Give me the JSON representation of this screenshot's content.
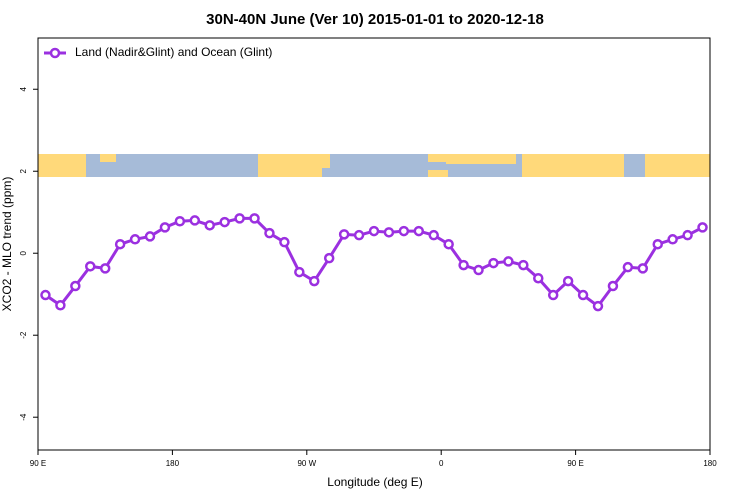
{
  "chart_data": {
    "type": "line",
    "title": "30N-40N June (Ver 10)   2015-01-01 to 2020-12-18",
    "x_label": "Longitude (deg E)",
    "y_label": "XCO2 - MLO trend (ppm)",
    "x": [
      95,
      105,
      115,
      125,
      135,
      145,
      155,
      165,
      175,
      185,
      195,
      205,
      215,
      225,
      235,
      245,
      255,
      265,
      275,
      285,
      295,
      305,
      315,
      325,
      335,
      345,
      355,
      365,
      375,
      385,
      395,
      405,
      415,
      425,
      435,
      445,
      455,
      465,
      475,
      485,
      495,
      505,
      515,
      525,
      535
    ],
    "series": [
      {
        "name": "Land (Nadir&Glint) and Ocean (Glint)",
        "color": "#9b30e0",
        "values": [
          -1.02,
          -1.27,
          -0.8,
          -0.32,
          -0.37,
          0.22,
          0.34,
          0.41,
          0.63,
          0.78,
          0.8,
          0.68,
          0.76,
          0.85,
          0.85,
          0.49,
          0.27,
          -0.46,
          -0.68,
          -0.12,
          0.46,
          0.44,
          0.54,
          0.51,
          0.54,
          0.54,
          0.44,
          0.22,
          -0.29,
          -0.41,
          -0.24,
          -0.2,
          -0.29,
          -0.61,
          -1.02,
          -0.68,
          -1.02,
          -1.29,
          -0.8,
          -0.34,
          -0.37,
          0.22,
          0.34,
          0.44,
          0.63
        ]
      }
    ],
    "xlim": [
      90,
      540
    ],
    "xticks": [
      {
        "value": 90,
        "label": "90 E"
      },
      180,
      {
        "value": 270,
        "label": "90 W"
      },
      {
        "value": 360,
        "label": "0"
      },
      {
        "value": 450,
        "label": "90 E"
      },
      {
        "value": 540,
        "label": "180"
      }
    ],
    "ylim": [
      -4.8,
      5.25
    ],
    "yticks": [
      -4,
      -2,
      0,
      2,
      4
    ],
    "legend": "top-left"
  }
}
